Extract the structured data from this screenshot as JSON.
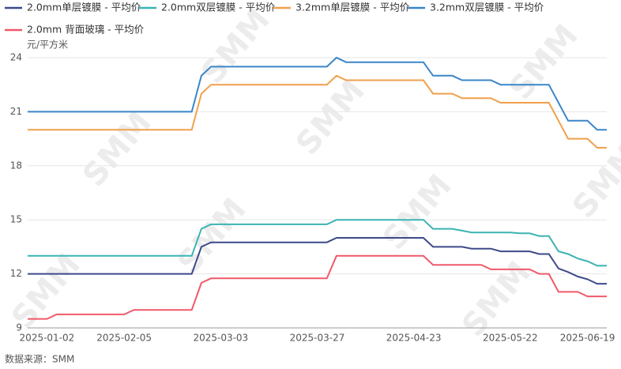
{
  "chart_data": {
    "type": "line",
    "y_label": "元/平方米",
    "source": "数据来源：SMM",
    "watermark": "SMM",
    "categories": [
      null,
      null,
      "2025-01-02",
      null,
      null,
      null,
      null,
      null,
      null,
      null,
      "2025-02-05",
      null,
      null,
      null,
      null,
      null,
      null,
      null,
      null,
      null,
      "2025-03-03",
      null,
      null,
      null,
      null,
      null,
      null,
      null,
      null,
      null,
      "2025-03-27",
      null,
      null,
      null,
      null,
      null,
      null,
      null,
      null,
      null,
      "2025-04-23",
      null,
      null,
      null,
      null,
      null,
      null,
      null,
      null,
      null,
      "2025-05-22",
      null,
      null,
      null,
      null,
      null,
      null,
      null,
      "2025-06-19",
      null,
      null
    ],
    "series": [
      {
        "name": "2.0mm单层镀膜 - 平均价",
        "color": "#3d4a8a",
        "values": [
          12,
          12,
          12,
          12,
          12,
          12,
          12,
          12,
          12,
          12,
          12,
          12,
          12,
          12,
          12,
          12,
          12,
          12,
          13.5,
          13.75,
          13.75,
          13.75,
          13.75,
          13.75,
          13.75,
          13.75,
          13.75,
          13.75,
          13.75,
          13.75,
          13.75,
          13.75,
          14,
          14,
          14,
          14,
          14,
          14,
          14,
          14,
          14,
          14,
          13.5,
          13.5,
          13.5,
          13.5,
          13.4,
          13.4,
          13.4,
          13.25,
          13.25,
          13.25,
          13.25,
          13.1,
          13.1,
          12.3,
          12.1,
          11.85,
          11.7,
          11.45,
          11.45
        ]
      },
      {
        "name": "2.0mm双层镀膜 - 平均价",
        "color": "#3bb3b3",
        "values": [
          13,
          13,
          13,
          13,
          13,
          13,
          13,
          13,
          13,
          13,
          13,
          13,
          13,
          13,
          13,
          13,
          13,
          13,
          14.5,
          14.75,
          14.75,
          14.75,
          14.75,
          14.75,
          14.75,
          14.75,
          14.75,
          14.75,
          14.75,
          14.75,
          14.75,
          14.75,
          15,
          15,
          15,
          15,
          15,
          15,
          15,
          15,
          15,
          15,
          14.5,
          14.5,
          14.5,
          14.4,
          14.3,
          14.3,
          14.3,
          14.3,
          14.3,
          14.25,
          14.25,
          14.1,
          14.1,
          13.25,
          13.1,
          12.85,
          12.7,
          12.45,
          12.45
        ]
      },
      {
        "name": "3.2mm单层镀膜 - 平均价",
        "color": "#f0a04b",
        "values": [
          20,
          20,
          20,
          20,
          20,
          20,
          20,
          20,
          20,
          20,
          20,
          20,
          20,
          20,
          20,
          20,
          20,
          20,
          22,
          22.5,
          22.5,
          22.5,
          22.5,
          22.5,
          22.5,
          22.5,
          22.5,
          22.5,
          22.5,
          22.5,
          22.5,
          22.5,
          23,
          22.75,
          22.75,
          22.75,
          22.75,
          22.75,
          22.75,
          22.75,
          22.75,
          22.75,
          22,
          22,
          22,
          21.75,
          21.75,
          21.75,
          21.75,
          21.5,
          21.5,
          21.5,
          21.5,
          21.5,
          21.5,
          20.5,
          19.5,
          19.5,
          19.5,
          19,
          19
        ]
      },
      {
        "name": "3.2mm双层镀膜 - 平均价",
        "color": "#3a86c8",
        "values": [
          21,
          21,
          21,
          21,
          21,
          21,
          21,
          21,
          21,
          21,
          21,
          21,
          21,
          21,
          21,
          21,
          21,
          21,
          23,
          23.5,
          23.5,
          23.5,
          23.5,
          23.5,
          23.5,
          23.5,
          23.5,
          23.5,
          23.5,
          23.5,
          23.5,
          23.5,
          24,
          23.75,
          23.75,
          23.75,
          23.75,
          23.75,
          23.75,
          23.75,
          23.75,
          23.75,
          23,
          23,
          23,
          22.75,
          22.75,
          22.75,
          22.75,
          22.5,
          22.5,
          22.5,
          22.5,
          22.5,
          22.5,
          21.5,
          20.5,
          20.5,
          20.5,
          20,
          20
        ]
      },
      {
        "name": "2.0mm 背面玻璃 - 平均价",
        "color": "#f05a6a",
        "values": [
          9.5,
          9.5,
          9.5,
          9.75,
          9.75,
          9.75,
          9.75,
          9.75,
          9.75,
          9.75,
          9.75,
          10,
          10,
          10,
          10,
          10,
          10,
          10,
          11.5,
          11.75,
          11.75,
          11.75,
          11.75,
          11.75,
          11.75,
          11.75,
          11.75,
          11.75,
          11.75,
          11.75,
          11.75,
          11.75,
          13,
          13,
          13,
          13,
          13,
          13,
          13,
          13,
          13,
          13,
          12.5,
          12.5,
          12.5,
          12.5,
          12.5,
          12.5,
          12.25,
          12.25,
          12.25,
          12.25,
          12.25,
          12,
          12,
          11,
          11,
          11,
          10.75,
          10.75,
          10.75
        ]
      }
    ],
    "ylim": [
      9,
      24
    ],
    "yticks": [
      9,
      12,
      15,
      18,
      21,
      24
    ],
    "grid": true
  }
}
